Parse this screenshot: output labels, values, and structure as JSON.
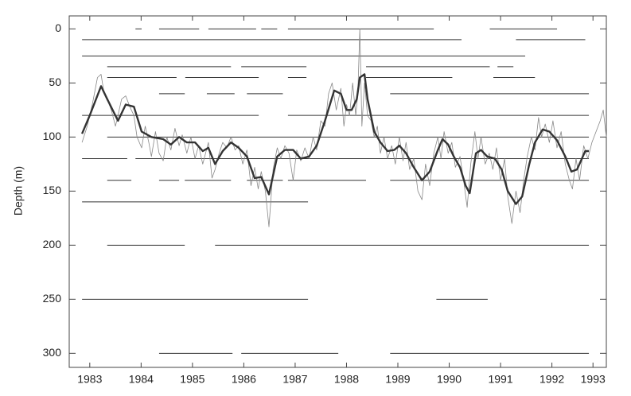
{
  "chart_data": {
    "type": "line",
    "y_label": "Depth (m)",
    "xlim": [
      1983.1,
      1993.56
    ],
    "ylim": [
      -12,
      313
    ],
    "y_inverted": true,
    "xticks": [
      {
        "value": 1983.5,
        "label": "1983"
      },
      {
        "value": 1984.5,
        "label": "1984"
      },
      {
        "value": 1985.5,
        "label": "1985"
      },
      {
        "value": 1986.5,
        "label": "1986"
      },
      {
        "value": 1987.5,
        "label": "1987"
      },
      {
        "value": 1988.5,
        "label": "1988"
      },
      {
        "value": 1989.5,
        "label": "1989"
      },
      {
        "value": 1990.5,
        "label": "1990"
      },
      {
        "value": 1991.5,
        "label": "1991"
      },
      {
        "value": 1992.5,
        "label": "1992"
      },
      {
        "value": 1993.3,
        "label": "1993"
      }
    ],
    "yticks": [
      0,
      50,
      100,
      150,
      200,
      250,
      300
    ],
    "segment_color": "#333333",
    "segments": [
      {
        "depth": 0,
        "start": 1984.39,
        "end": 1984.51
      },
      {
        "depth": 0,
        "start": 1984.85,
        "end": 1985.63
      },
      {
        "depth": 0,
        "start": 1985.81,
        "end": 1986.74
      },
      {
        "depth": 0,
        "start": 1986.84,
        "end": 1987.15
      },
      {
        "depth": 0,
        "start": 1987.36,
        "end": 1990.2
      },
      {
        "depth": 0,
        "start": 1991.29,
        "end": 1992.6
      },
      {
        "depth": 10,
        "start": 1983.35,
        "end": 1990.74
      },
      {
        "depth": 10,
        "start": 1991.8,
        "end": 1993.15
      },
      {
        "depth": 25,
        "start": 1983.35,
        "end": 1991.98
      },
      {
        "depth": 35,
        "start": 1983.84,
        "end": 1986.25
      },
      {
        "depth": 35,
        "start": 1986.45,
        "end": 1987.72
      },
      {
        "depth": 35,
        "start": 1988.88,
        "end": 1991.29
      },
      {
        "depth": 35,
        "start": 1991.44,
        "end": 1991.75
      },
      {
        "depth": 45,
        "start": 1983.84,
        "end": 1985.19
      },
      {
        "depth": 45,
        "start": 1985.36,
        "end": 1986.79
      },
      {
        "depth": 45,
        "start": 1987.36,
        "end": 1987.72
      },
      {
        "depth": 45,
        "start": 1988.88,
        "end": 1990.56
      },
      {
        "depth": 45,
        "start": 1991.36,
        "end": 1992.17
      },
      {
        "depth": 60,
        "start": 1984.85,
        "end": 1985.35
      },
      {
        "depth": 60,
        "start": 1985.78,
        "end": 1986.32
      },
      {
        "depth": 60,
        "start": 1986.56,
        "end": 1987.26
      },
      {
        "depth": 60,
        "start": 1989.35,
        "end": 1993.22
      },
      {
        "depth": 80,
        "start": 1983.35,
        "end": 1986.79
      },
      {
        "depth": 80,
        "start": 1987.36,
        "end": 1993.22
      },
      {
        "depth": 100,
        "start": 1983.84,
        "end": 1993.22
      },
      {
        "depth": 120,
        "start": 1983.35,
        "end": 1984.23
      },
      {
        "depth": 120,
        "start": 1984.39,
        "end": 1993.22
      },
      {
        "depth": 140,
        "start": 1983.84,
        "end": 1984.31
      },
      {
        "depth": 140,
        "start": 1984.85,
        "end": 1985.24
      },
      {
        "depth": 140,
        "start": 1985.35,
        "end": 1986.25
      },
      {
        "depth": 140,
        "start": 1986.56,
        "end": 1987.26
      },
      {
        "depth": 140,
        "start": 1987.36,
        "end": 1988.88
      },
      {
        "depth": 140,
        "start": 1989.35,
        "end": 1993.22
      },
      {
        "depth": 160,
        "start": 1983.35,
        "end": 1987.75
      },
      {
        "depth": 200,
        "start": 1983.84,
        "end": 1985.35
      },
      {
        "depth": 200,
        "start": 1985.94,
        "end": 1993.22
      },
      {
        "depth": 250,
        "start": 1983.35,
        "end": 1987.75
      },
      {
        "depth": 250,
        "start": 1990.25,
        "end": 1991.25
      },
      {
        "depth": 300,
        "start": 1984.85,
        "end": 1986.28
      },
      {
        "depth": 300,
        "start": 1986.45,
        "end": 1988.34
      },
      {
        "depth": 300,
        "start": 1989.35,
        "end": 1993.22
      }
    ],
    "series": [
      {
        "color": "#888888",
        "line_width": 0.8,
        "x": [
          1983.35,
          1983.45,
          1983.55,
          1983.65,
          1983.72,
          1983.78,
          1983.84,
          1983.92,
          1984.0,
          1984.05,
          1984.12,
          1984.2,
          1984.28,
          1984.36,
          1984.42,
          1984.51,
          1984.58,
          1984.65,
          1984.7,
          1984.78,
          1984.85,
          1984.93,
          1985.0,
          1985.08,
          1985.16,
          1985.24,
          1985.3,
          1985.39,
          1985.47,
          1985.55,
          1985.62,
          1985.7,
          1985.81,
          1985.88,
          1985.94,
          1986.02,
          1986.09,
          1986.17,
          1986.25,
          1986.33,
          1986.4,
          1986.48,
          1986.56,
          1986.64,
          1986.71,
          1986.78,
          1986.84,
          1986.92,
          1986.99,
          1987.07,
          1987.15,
          1987.22,
          1987.3,
          1987.38,
          1987.46,
          1987.53,
          1987.61,
          1987.69,
          1987.77,
          1987.85,
          1987.92,
          1988.0,
          1988.08,
          1988.15,
          1988.22,
          1988.3,
          1988.39,
          1988.45,
          1988.5,
          1988.56,
          1988.62,
          1988.68,
          1988.72,
          1988.76,
          1988.8,
          1988.85,
          1988.91,
          1988.98,
          1989.04,
          1989.1,
          1989.16,
          1989.23,
          1989.3,
          1989.38,
          1989.45,
          1989.53,
          1989.6,
          1989.66,
          1989.73,
          1989.81,
          1989.89,
          1989.97,
          1990.04,
          1990.12,
          1990.2,
          1990.28,
          1990.34,
          1990.4,
          1990.48,
          1990.55,
          1990.62,
          1990.71,
          1990.78,
          1990.85,
          1990.92,
          1991.0,
          1991.06,
          1991.12,
          1991.2,
          1991.28,
          1991.35,
          1991.42,
          1991.5,
          1991.58,
          1991.64,
          1991.72,
          1991.8,
          1991.88,
          1991.95,
          1992.02,
          1992.1,
          1992.17,
          1992.24,
          1992.3,
          1992.37,
          1992.45,
          1992.52,
          1992.6,
          1992.68,
          1992.76,
          1992.84,
          1992.9,
          1992.97,
          1993.04,
          1993.12,
          1993.2,
          1993.28,
          1993.36,
          1993.44,
          1993.5,
          1993.56
        ],
        "values": [
          105,
          90,
          70,
          45,
          42,
          60,
          65,
          75,
          90,
          80,
          65,
          62,
          72,
          80,
          100,
          110,
          90,
          105,
          118,
          95,
          115,
          122,
          100,
          112,
          92,
          108,
          98,
          115,
          100,
          120,
          108,
          125,
          105,
          138,
          130,
          115,
          105,
          110,
          100,
          112,
          108,
          125,
          112,
          145,
          128,
          148,
          132,
          150,
          183,
          130,
          110,
          120,
          108,
          115,
          140,
          112,
          122,
          110,
          120,
          100,
          112,
          85,
          90,
          60,
          50,
          75,
          55,
          90,
          70,
          80,
          50,
          80,
          60,
          0,
          90,
          50,
          80,
          85,
          100,
          90,
          115,
          100,
          120,
          108,
          125,
          100,
          122,
          105,
          130,
          120,
          150,
          158,
          125,
          145,
          115,
          100,
          120,
          95,
          115,
          105,
          128,
          118,
          140,
          165,
          125,
          95,
          120,
          100,
          125,
          115,
          130,
          110,
          140,
          120,
          155,
          180,
          150,
          170,
          140,
          118,
          100,
          112,
          82,
          100,
          88,
          105,
          85,
          110,
          95,
          125,
          140,
          148,
          120,
          140,
          108,
          120,
          105,
          95,
          85,
          75,
          100
        ]
      },
      {
        "color": "#333333",
        "line_width": 2.4,
        "x": [
          1983.35,
          1983.5,
          1983.72,
          1983.84,
          1984.05,
          1984.2,
          1984.36,
          1984.51,
          1984.7,
          1984.93,
          1985.08,
          1985.24,
          1985.39,
          1985.55,
          1985.7,
          1985.81,
          1985.94,
          1986.09,
          1986.25,
          1986.4,
          1986.56,
          1986.71,
          1986.84,
          1986.99,
          1987.15,
          1987.3,
          1987.46,
          1987.61,
          1987.77,
          1987.92,
          1988.08,
          1988.26,
          1988.39,
          1988.5,
          1988.6,
          1988.7,
          1988.76,
          1988.85,
          1988.91,
          1989.04,
          1989.16,
          1989.3,
          1989.43,
          1989.53,
          1989.66,
          1989.81,
          1989.97,
          1990.12,
          1990.28,
          1990.37,
          1990.48,
          1990.59,
          1990.71,
          1990.82,
          1990.9,
          1991.02,
          1991.12,
          1991.24,
          1991.39,
          1991.52,
          1991.64,
          1991.8,
          1991.92,
          1992.06,
          1992.17,
          1992.32,
          1992.45,
          1992.6,
          1992.76,
          1992.88,
          1992.99,
          1993.15,
          1993.22
        ],
        "values": [
          97,
          80,
          53,
          65,
          85,
          70,
          72,
          95,
          100,
          102,
          107,
          100,
          105,
          105,
          113,
          110,
          125,
          113,
          105,
          110,
          118,
          138,
          137,
          153,
          118,
          112,
          112,
          120,
          118,
          108,
          85,
          57,
          60,
          75,
          75,
          65,
          45,
          42,
          65,
          95,
          105,
          113,
          112,
          108,
          115,
          128,
          140,
          132,
          112,
          102,
          107,
          118,
          128,
          145,
          152,
          115,
          112,
          118,
          120,
          130,
          150,
          162,
          155,
          125,
          105,
          93,
          95,
          103,
          118,
          132,
          130,
          113,
          113
        ]
      }
    ]
  }
}
